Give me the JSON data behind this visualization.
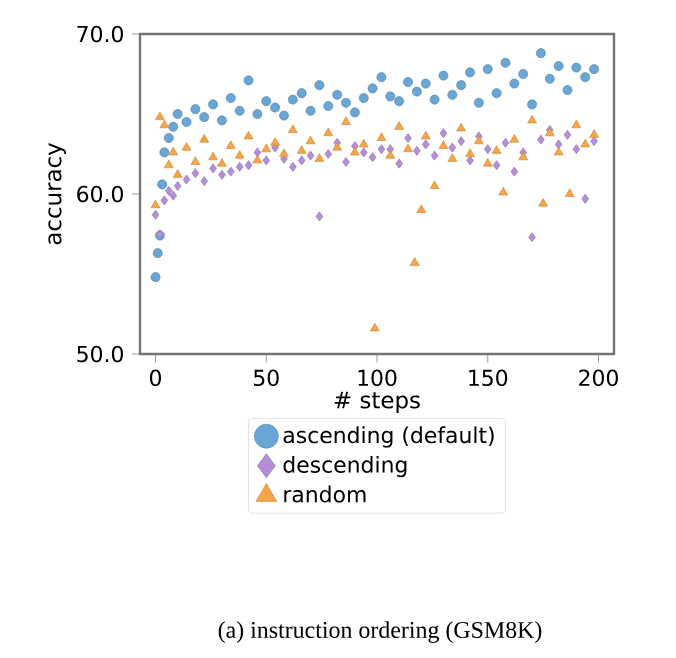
{
  "chart_data": {
    "type": "scatter",
    "xlabel": "# steps",
    "ylabel": "accuracy",
    "xlim": [
      -7,
      207
    ],
    "ylim": [
      50,
      70
    ],
    "xticks": [
      0,
      50,
      100,
      150,
      200
    ],
    "yticks": [
      {
        "value": 50,
        "label": "50.0"
      },
      {
        "value": 60,
        "label": "60.0"
      },
      {
        "value": 70,
        "label": "70.0"
      }
    ],
    "legend": "bottom",
    "grid": false,
    "annotations": [
      "(a) instruction ordering (GSM8K)"
    ],
    "series": [
      {
        "name": "ascending (default)",
        "color": "#6aa6d4",
        "marker": "circle",
        "x": [
          0,
          1,
          2,
          3,
          4,
          6,
          8,
          10,
          14,
          18,
          22,
          26,
          30,
          34,
          38,
          42,
          46,
          50,
          54,
          58,
          62,
          66,
          70,
          74,
          78,
          82,
          86,
          90,
          94,
          98,
          102,
          106,
          110,
          114,
          118,
          122,
          126,
          130,
          134,
          138,
          142,
          146,
          150,
          154,
          158,
          162,
          166,
          170,
          174,
          178,
          182,
          186,
          190,
          194,
          198
        ],
        "values": [
          54.8,
          56.3,
          57.4,
          60.6,
          62.6,
          63.5,
          64.2,
          65.0,
          64.5,
          65.3,
          64.8,
          65.6,
          64.6,
          66.0,
          65.2,
          67.1,
          65.0,
          65.8,
          65.4,
          64.9,
          65.9,
          66.3,
          65.2,
          66.8,
          65.5,
          66.2,
          65.7,
          65.1,
          66.0,
          66.6,
          67.3,
          66.1,
          65.8,
          67.0,
          66.4,
          66.9,
          65.9,
          67.4,
          66.2,
          66.8,
          67.6,
          65.7,
          67.8,
          66.3,
          68.2,
          66.9,
          67.5,
          65.6,
          68.8,
          67.2,
          68.0,
          66.5,
          67.9,
          67.3,
          67.8
        ]
      },
      {
        "name": "descending",
        "color": "#b48fd6",
        "marker": "diamond",
        "x": [
          0,
          2,
          4,
          6,
          8,
          10,
          14,
          18,
          22,
          26,
          30,
          34,
          38,
          42,
          46,
          50,
          54,
          58,
          62,
          66,
          70,
          74,
          78,
          82,
          86,
          90,
          94,
          98,
          102,
          106,
          110,
          114,
          118,
          122,
          126,
          130,
          134,
          138,
          142,
          146,
          150,
          154,
          158,
          162,
          166,
          170,
          174,
          178,
          182,
          186,
          190,
          194,
          198
        ],
        "values": [
          58.7,
          57.5,
          59.6,
          60.2,
          59.9,
          60.5,
          60.9,
          61.3,
          60.8,
          61.6,
          61.2,
          61.4,
          61.7,
          61.8,
          62.6,
          62.1,
          62.9,
          62.2,
          61.7,
          62.1,
          62.4,
          58.6,
          62.5,
          63.2,
          62.0,
          63.0,
          62.6,
          62.3,
          62.8,
          62.8,
          61.9,
          63.5,
          62.7,
          63.1,
          62.4,
          63.8,
          62.9,
          63.3,
          62.1,
          63.6,
          62.8,
          61.8,
          63.2,
          61.4,
          62.6,
          57.3,
          63.4,
          64.0,
          63.1,
          63.7,
          62.8,
          59.7,
          63.3
        ]
      },
      {
        "name": "random",
        "color": "#f7a547",
        "marker": "triangle",
        "x": [
          0,
          2,
          4,
          6,
          8,
          10,
          14,
          18,
          22,
          26,
          30,
          34,
          38,
          42,
          46,
          50,
          54,
          58,
          62,
          66,
          70,
          74,
          78,
          82,
          86,
          90,
          94,
          99,
          102,
          106,
          110,
          114,
          117,
          120,
          122,
          126,
          130,
          134,
          138,
          142,
          146,
          150,
          154,
          157,
          162,
          166,
          170,
          175,
          178,
          182,
          187,
          190,
          194,
          198
        ],
        "values": [
          59.3,
          64.8,
          64.3,
          61.8,
          62.6,
          61.2,
          62.9,
          62.0,
          63.4,
          62.3,
          61.9,
          63.0,
          62.4,
          63.6,
          62.1,
          62.8,
          63.2,
          62.5,
          64.0,
          62.7,
          63.3,
          62.2,
          63.8,
          62.9,
          64.5,
          62.6,
          63.1,
          51.6,
          63.5,
          62.4,
          64.2,
          62.8,
          55.7,
          59.0,
          63.6,
          60.5,
          63.0,
          62.2,
          64.1,
          62.5,
          63.3,
          61.9,
          62.7,
          60.1,
          63.4,
          62.3,
          64.6,
          59.4,
          63.8,
          62.6,
          60.0,
          64.3,
          63.1,
          63.7
        ]
      }
    ]
  }
}
